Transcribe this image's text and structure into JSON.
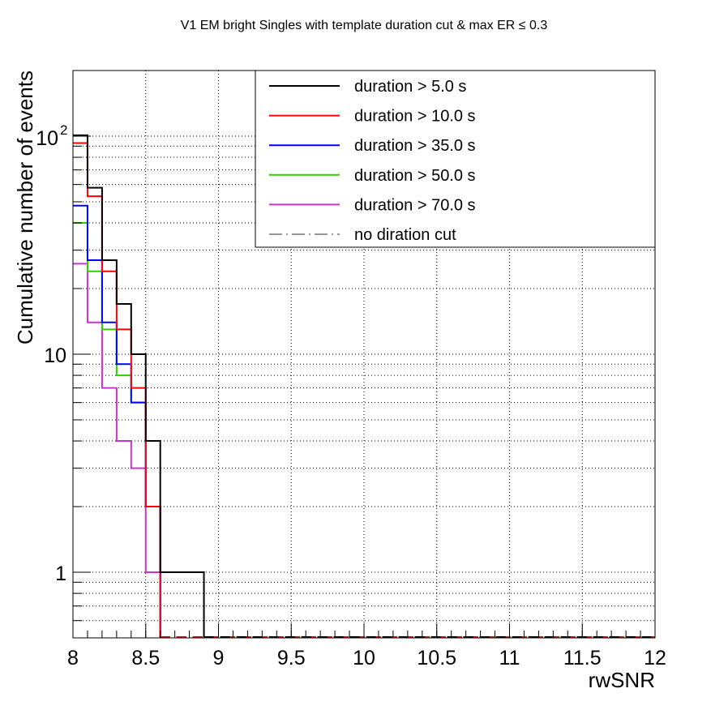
{
  "chart_data": {
    "type": "line",
    "title": "V1 EM bright Singles with template duration cut & max ER ≤ 0.3",
    "xlabel": "rwSNR",
    "ylabel": "Cumulative number of events",
    "xlim": [
      8,
      12
    ],
    "ylim": [
      0.5,
      200
    ],
    "yscale": "log",
    "grid": true,
    "legend_position": "top-right",
    "bin_width": 0.1,
    "x_ticks": [
      "8",
      "8.5",
      "9",
      "9.5",
      "10",
      "10.5",
      "11",
      "11.5",
      "12"
    ],
    "y_ticks": [
      {
        "value": 1,
        "label": "1"
      },
      {
        "value": 10,
        "label": "10"
      },
      {
        "value": 100,
        "label": "10",
        "exponent": "2"
      }
    ],
    "series": [
      {
        "name": "duration > 5.0 s",
        "color": "#000000",
        "dash": "solid",
        "bin_edges": [
          8.0,
          8.1,
          8.2,
          8.3,
          8.4,
          8.5,
          8.6,
          8.7,
          8.8,
          8.9
        ],
        "values": [
          101,
          58,
          27,
          17,
          10,
          4,
          1,
          1,
          1
        ]
      },
      {
        "name": "duration > 10.0 s",
        "color": "#ff0000",
        "dash": "solid",
        "bin_edges": [
          8.0,
          8.1,
          8.2,
          8.3,
          8.4,
          8.5,
          8.6
        ],
        "values": [
          93,
          53,
          24,
          13,
          7,
          2
        ]
      },
      {
        "name": "duration > 35.0 s",
        "color": "#0000ff",
        "dash": "solid",
        "bin_edges": [
          8.0,
          8.1,
          8.2,
          8.3,
          8.4,
          8.5,
          8.6
        ],
        "values": [
          48,
          27,
          14,
          9,
          6,
          2
        ]
      },
      {
        "name": "duration > 50.0 s",
        "color": "#33cc00",
        "dash": "solid",
        "bin_edges": [
          8.0,
          8.1,
          8.2,
          8.3,
          8.4,
          8.5,
          8.6
        ],
        "values": [
          40,
          24,
          13,
          8,
          6,
          2
        ]
      },
      {
        "name": "duration > 70.0 s",
        "color": "#cc33cc",
        "dash": "solid",
        "bin_edges": [
          8.0,
          8.1,
          8.2,
          8.3,
          8.4,
          8.5,
          8.6
        ],
        "values": [
          26,
          14,
          7,
          4,
          3,
          1
        ]
      },
      {
        "name": "no diration cut",
        "color": "#999999",
        "dash": "dashdot",
        "bin_edges": [],
        "values": []
      }
    ]
  }
}
